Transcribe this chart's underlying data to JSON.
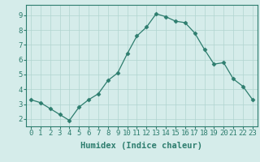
{
  "x": [
    0,
    1,
    2,
    3,
    4,
    5,
    6,
    7,
    8,
    9,
    10,
    11,
    12,
    13,
    14,
    15,
    16,
    17,
    18,
    19,
    20,
    21,
    22,
    23
  ],
  "y": [
    3.3,
    3.1,
    2.7,
    2.3,
    1.9,
    2.8,
    3.3,
    3.7,
    4.6,
    5.1,
    6.4,
    7.6,
    8.2,
    9.1,
    8.9,
    8.6,
    8.5,
    7.8,
    6.7,
    5.7,
    5.8,
    4.7,
    4.2,
    3.3
  ],
  "line_color": "#2d7d6e",
  "marker": "D",
  "marker_size": 2.5,
  "bg_color": "#d5ecea",
  "grid_color": "#b0d4d0",
  "xlabel": "Humidex (Indice chaleur)",
  "xlabel_fontsize": 7.5,
  "tick_fontsize": 6.5,
  "ylim": [
    1.5,
    9.7
  ],
  "xlim": [
    -0.5,
    23.5
  ],
  "yticks": [
    2,
    3,
    4,
    5,
    6,
    7,
    8,
    9
  ],
  "xticks": [
    0,
    1,
    2,
    3,
    4,
    5,
    6,
    7,
    8,
    9,
    10,
    11,
    12,
    13,
    14,
    15,
    16,
    17,
    18,
    19,
    20,
    21,
    22,
    23
  ]
}
